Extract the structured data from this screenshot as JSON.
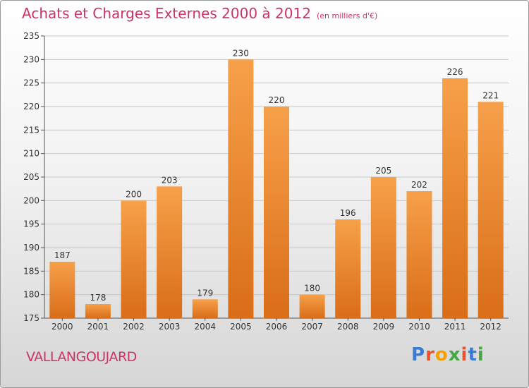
{
  "header": {
    "title": "Achats et Charges Externes 2000 à 2012",
    "subtitle": "(en milliers d'€)"
  },
  "footer": {
    "commune": "VALLANGOUJARD",
    "logo": {
      "letters": [
        "P",
        "r",
        "o",
        "x",
        "i",
        "t",
        "i"
      ],
      "colors": [
        "#3a7bd5",
        "#e8542b",
        "#f4a100",
        "#45a843",
        "#e8542b",
        "#3a7bd5",
        "#45a843"
      ]
    }
  },
  "chart_data": {
    "type": "bar",
    "categories": [
      "2000",
      "2001",
      "2002",
      "2003",
      "2004",
      "2005",
      "2006",
      "2007",
      "2008",
      "2009",
      "2010",
      "2011",
      "2012"
    ],
    "values": [
      187,
      178,
      200,
      203,
      179,
      230,
      220,
      180,
      196,
      205,
      202,
      226,
      221
    ],
    "title": "Achats et Charges Externes 2000 à 2012",
    "ylim": [
      175,
      235
    ],
    "yticks": [
      175,
      180,
      185,
      190,
      195,
      200,
      205,
      210,
      215,
      220,
      225,
      230,
      235
    ],
    "grid": true,
    "bar_color": "#f0923a"
  }
}
